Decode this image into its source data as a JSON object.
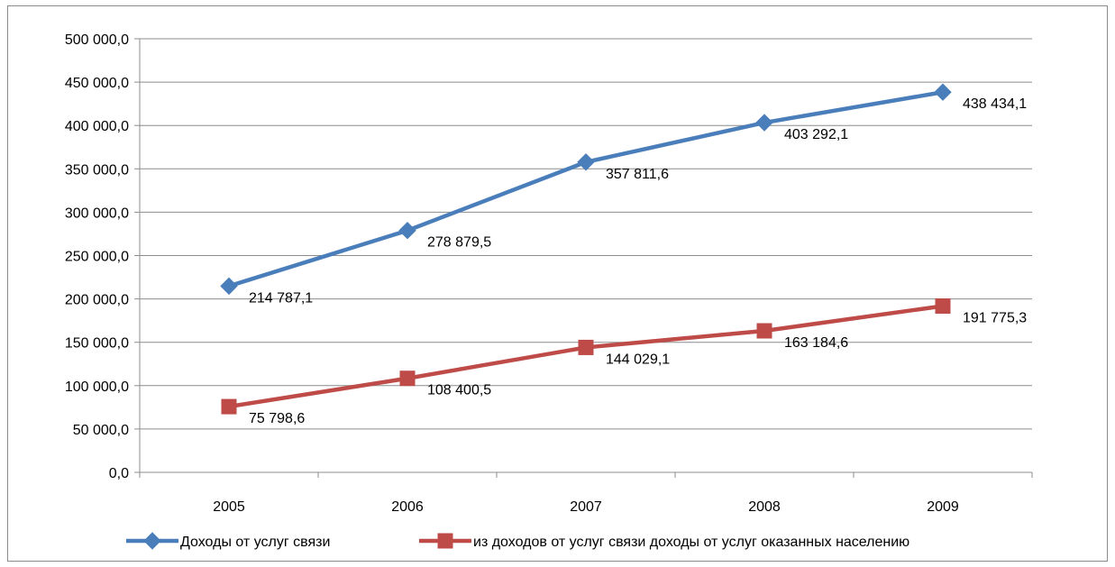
{
  "chart_data": {
    "type": "line",
    "categories": [
      "2005",
      "2006",
      "2007",
      "2008",
      "2009"
    ],
    "ylim": [
      0,
      500000
    ],
    "ytick_step": 50000,
    "y_tick_labels": [
      "0,0",
      "50 000,0",
      "100 000,0",
      "150 000,0",
      "200 000,0",
      "250 000,0",
      "300 000,0",
      "350 000,0",
      "400 000,0",
      "450 000,0",
      "500 000,0"
    ],
    "grid": true,
    "legend_position": "bottom",
    "series": [
      {
        "name": "Доходы от услуг связи",
        "values": [
          214787.1,
          278879.5,
          357811.6,
          403292.1,
          438434.1
        ],
        "labels": [
          "214 787,1",
          "278 879,5",
          "357 811,6",
          "403 292,1",
          "438 434,1"
        ],
        "color": "#4a7ebb",
        "marker": "diamond"
      },
      {
        "name": "из доходов от услуг связи доходы от услуг оказанных населению",
        "values": [
          75798.6,
          108400.5,
          144029.1,
          163184.6,
          191775.3
        ],
        "labels": [
          "75 798,6",
          "108 400,5",
          "144 029,1",
          "163 184,6",
          "191 775,3"
        ],
        "color": "#be4b48",
        "marker": "square"
      }
    ]
  }
}
